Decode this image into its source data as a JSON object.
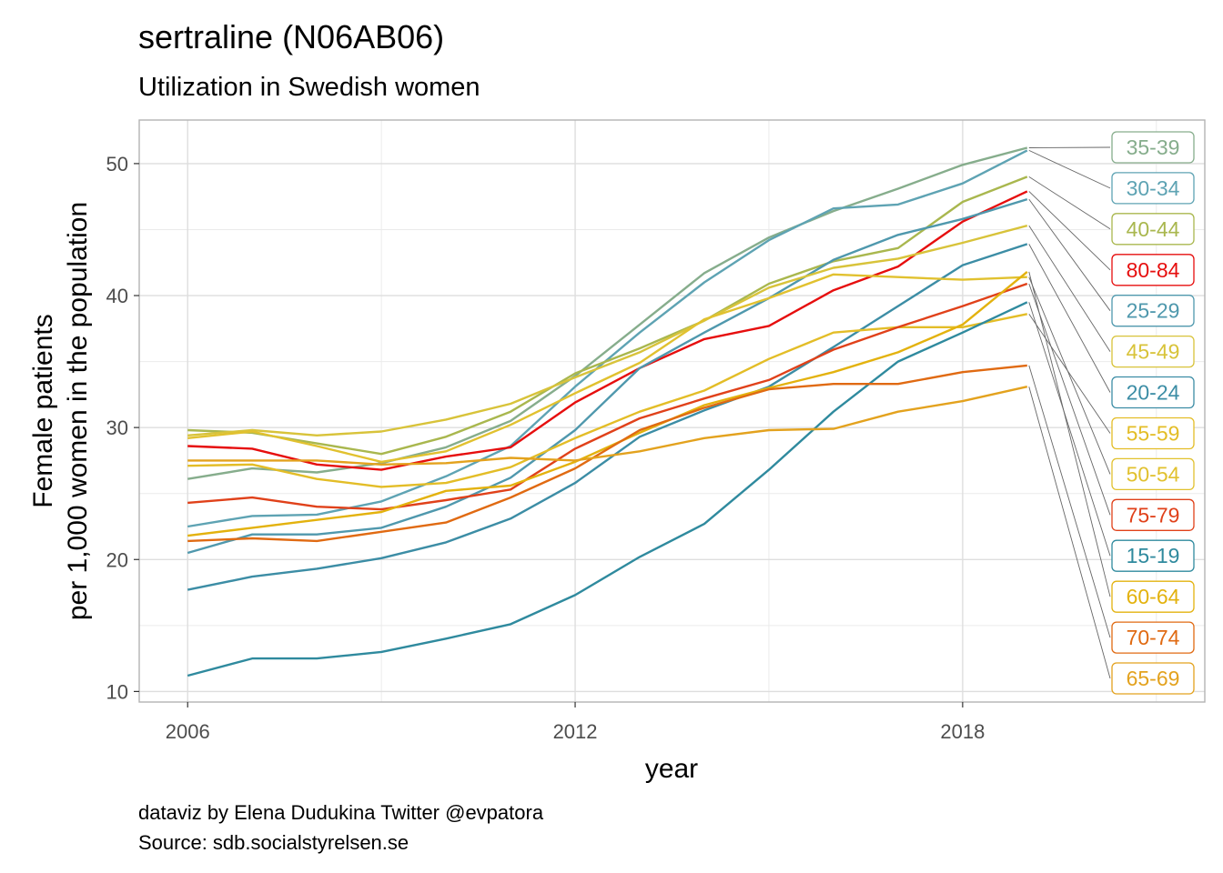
{
  "chart_data": {
    "type": "line",
    "title": "sertraline (N06AB06)",
    "subtitle": "Utilization in Swedish women",
    "xlabel": "year",
    "ylabel": [
      "Female patients",
      "per 1,000 women in the population"
    ],
    "caption": [
      "dataviz by Elena Dudukina Twitter @evpatora",
      "Source: sdb.socialstyrelsen.se"
    ],
    "x": [
      2006,
      2007,
      2008,
      2009,
      2010,
      2011,
      2012,
      2013,
      2014,
      2015,
      2016,
      2017,
      2018,
      2019
    ],
    "xlim": [
      2005.25,
      2021.75
    ],
    "ylim": [
      9.2,
      53.3
    ],
    "xticks": [
      2006,
      2012,
      2018
    ],
    "yticks": [
      10,
      20,
      30,
      40,
      50
    ],
    "x_minor_grid": [
      2009,
      2015,
      2021
    ],
    "y_minor_grid": [
      15,
      25,
      35,
      45
    ],
    "grid": true,
    "legend": "direct labels on right",
    "series": [
      {
        "name": "35-39",
        "color": "#86ad8c",
        "values": [
          26.1,
          26.9,
          26.6,
          27.3,
          28.5,
          30.5,
          33.9,
          37.8,
          41.7,
          44.4,
          46.4,
          48.1,
          49.9,
          51.2
        ]
      },
      {
        "name": "30-34",
        "color": "#5ea3b3",
        "values": [
          22.5,
          23.3,
          23.4,
          24.4,
          26.3,
          28.6,
          33.1,
          37.2,
          41.0,
          44.2,
          46.6,
          46.9,
          48.5,
          51.0
        ]
      },
      {
        "name": "40-44",
        "color": "#a9b74e",
        "values": [
          29.8,
          29.6,
          28.8,
          28.0,
          29.3,
          31.2,
          34.1,
          36.0,
          38.1,
          40.9,
          42.6,
          43.6,
          47.1,
          49.0
        ]
      },
      {
        "name": "80-84",
        "color": "#e60e0e",
        "values": [
          28.6,
          28.4,
          27.2,
          26.8,
          27.8,
          28.5,
          31.9,
          34.5,
          36.7,
          37.7,
          40.4,
          42.2,
          45.6,
          47.9
        ]
      },
      {
        "name": "25-29",
        "color": "#4f98ad",
        "values": [
          20.5,
          21.9,
          21.9,
          22.4,
          24.0,
          26.2,
          29.8,
          34.5,
          37.2,
          39.8,
          42.7,
          44.6,
          45.8,
          47.3
        ]
      },
      {
        "name": "45-49",
        "color": "#d8c33a",
        "values": [
          29.4,
          29.8,
          29.4,
          29.7,
          30.6,
          31.8,
          33.8,
          35.7,
          38.1,
          40.6,
          42.1,
          42.8,
          44.0,
          45.3
        ]
      },
      {
        "name": "20-24",
        "color": "#3c8da5",
        "values": [
          17.7,
          18.7,
          19.3,
          20.1,
          21.3,
          23.1,
          25.8,
          29.3,
          31.3,
          33.1,
          36.1,
          39.2,
          42.3,
          43.9
        ]
      },
      {
        "name": "55-59",
        "color": "#e3bd27",
        "values": [
          27.1,
          27.2,
          26.1,
          25.5,
          25.8,
          27.0,
          29.2,
          31.2,
          32.8,
          35.2,
          37.2,
          37.6,
          37.6,
          38.6
        ]
      },
      {
        "name": "50-54",
        "color": "#e1c12f",
        "values": [
          29.2,
          29.7,
          28.6,
          27.4,
          28.2,
          30.2,
          32.6,
          34.9,
          38.2,
          39.8,
          41.6,
          41.4,
          41.2,
          41.4
        ]
      },
      {
        "name": "75-79",
        "color": "#e0411a",
        "values": [
          24.3,
          24.7,
          24.0,
          23.8,
          24.5,
          25.3,
          28.4,
          30.7,
          32.2,
          33.6,
          35.9,
          37.6,
          39.2,
          40.9
        ]
      },
      {
        "name": "15-19",
        "color": "#2f8a9e",
        "values": [
          11.2,
          12.5,
          12.5,
          13.0,
          14.0,
          15.1,
          17.3,
          20.2,
          22.7,
          26.8,
          31.2,
          35.0,
          37.2,
          39.5
        ]
      },
      {
        "name": "60-64",
        "color": "#e3b20e",
        "values": [
          21.8,
          22.4,
          23.0,
          23.6,
          25.2,
          25.6,
          27.4,
          29.6,
          31.7,
          33.0,
          34.2,
          35.7,
          37.8,
          41.8
        ]
      },
      {
        "name": "70-74",
        "color": "#e06a12",
        "values": [
          21.4,
          21.6,
          21.4,
          22.1,
          22.8,
          24.7,
          26.9,
          29.8,
          31.5,
          32.9,
          33.3,
          33.3,
          34.2,
          34.7
        ]
      },
      {
        "name": "65-69",
        "color": "#e3a21e",
        "values": [
          27.5,
          27.5,
          27.5,
          27.2,
          27.3,
          27.7,
          27.5,
          28.2,
          29.2,
          29.8,
          29.9,
          31.2,
          32.0,
          33.1
        ]
      }
    ]
  }
}
